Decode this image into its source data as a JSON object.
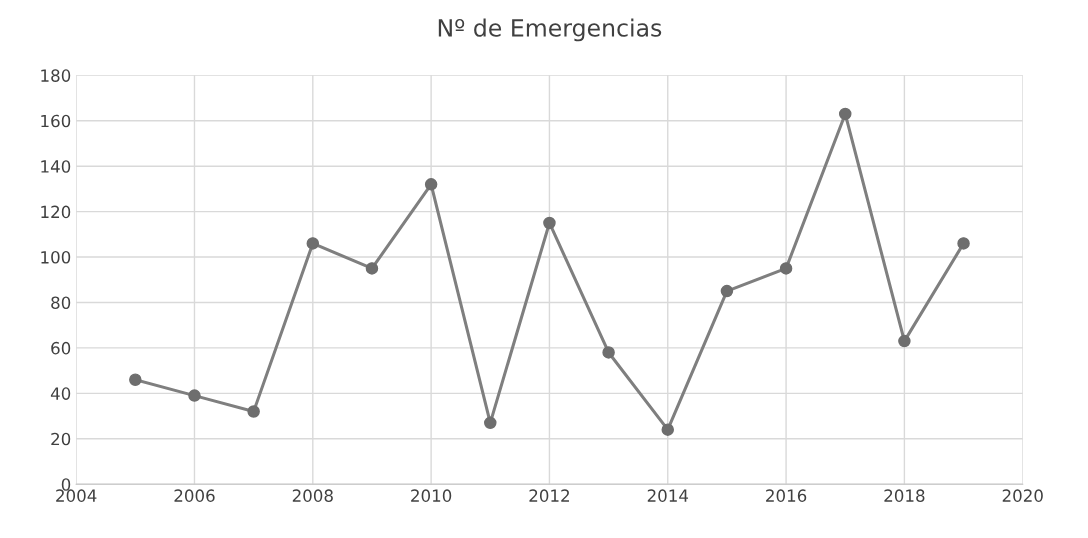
{
  "chart_data": {
    "type": "line",
    "title": "Nº de Emergencias",
    "x": [
      2005,
      2006,
      2007,
      2008,
      2009,
      2010,
      2011,
      2012,
      2013,
      2014,
      2015,
      2016,
      2017,
      2018,
      2019
    ],
    "series": [
      {
        "color": "#7f7f7f",
        "values": [
          46,
          39,
          32,
          106,
          95,
          132,
          27,
          115,
          58,
          24,
          85,
          95,
          163,
          63,
          106
        ]
      }
    ],
    "xlim": [
      2004,
      2020
    ],
    "xticks": [
      2004,
      2006,
      2008,
      2010,
      2012,
      2014,
      2016,
      2018,
      2020
    ],
    "ylim": [
      0,
      180
    ],
    "yticks": [
      0,
      20,
      40,
      60,
      80,
      100,
      120,
      140,
      160,
      180
    ],
    "grid": true,
    "marker": "circle",
    "line_style": "solid",
    "legend": false
  }
}
